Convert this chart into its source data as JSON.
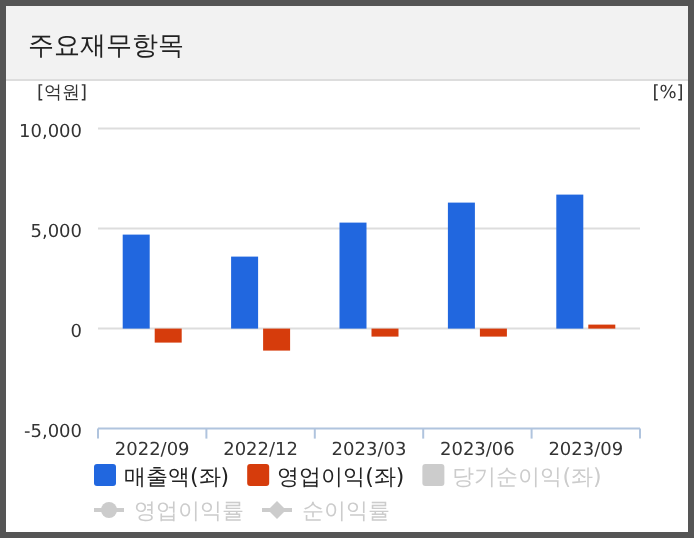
{
  "chart_data": {
    "type": "bar",
    "title": "주요재무항목",
    "ylabel": "[억원]",
    "y2label": "[%]",
    "categories": [
      "2022/09",
      "2022/12",
      "2023/03",
      "2023/06",
      "2023/09"
    ],
    "series": [
      {
        "name": "매출액(좌)",
        "color": "#2167df",
        "values": [
          4700,
          3600,
          5300,
          6300,
          6700
        ]
      },
      {
        "name": "영업이익(좌)",
        "color": "#d63c0c",
        "values": [
          -700,
          -1100,
          -400,
          -400,
          200
        ]
      },
      {
        "name": "당기순이익(좌)",
        "color": "#cccccc",
        "values": [
          null,
          null,
          null,
          null,
          null
        ]
      },
      {
        "name": "영업이익률",
        "type": "line",
        "marker": "circle",
        "color": "#cccccc",
        "values": [
          null,
          null,
          null,
          null,
          null
        ]
      },
      {
        "name": "순이익률",
        "type": "line",
        "marker": "diamond",
        "color": "#cccccc",
        "values": [
          null,
          null,
          null,
          null,
          null
        ]
      }
    ],
    "ylim": [
      -5000,
      10000
    ],
    "yticks": [
      {
        "value": 10000,
        "label": "10,000"
      },
      {
        "value": 5000,
        "label": "5,000"
      },
      0,
      {
        "value": -5000,
        "label": "-5,000"
      }
    ],
    "grid": "y",
    "legend": "bottom"
  }
}
